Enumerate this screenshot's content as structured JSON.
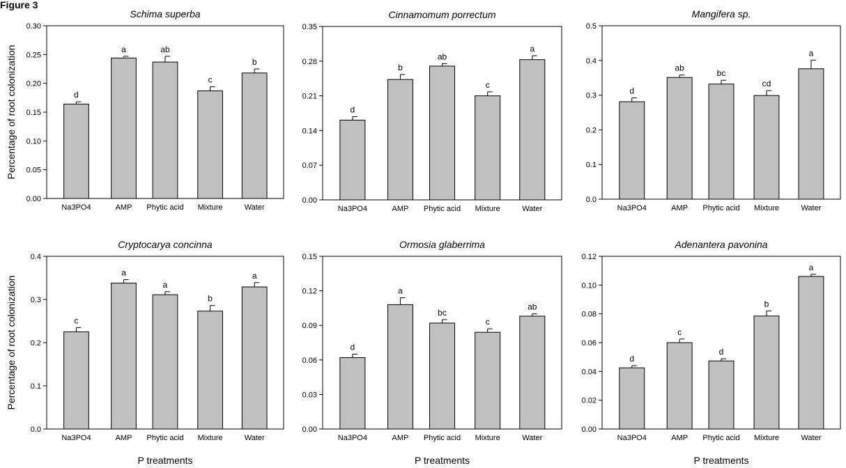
{
  "figure": {
    "label": "Figure 3"
  },
  "chart_data": [
    {
      "type": "bar",
      "title": "Schima superba",
      "ylabel": "Percentage of root colonization",
      "xlabel": "",
      "categories": [
        "Na3PO4",
        "AMP",
        "Phytic acid",
        "Mixture",
        "Water"
      ],
      "values": [
        0.164,
        0.244,
        0.237,
        0.187,
        0.218
      ],
      "errors": [
        0.004,
        0.003,
        0.01,
        0.007,
        0.007
      ],
      "significance": [
        "d",
        "a",
        "ab",
        "c",
        "b"
      ],
      "ylim": [
        0,
        0.3
      ],
      "yticks": [
        0.0,
        0.05,
        0.1,
        0.15,
        0.2,
        0.25,
        0.3
      ],
      "ytick_labels": [
        "0.00",
        "0.05",
        "0.10",
        "0.15",
        "0.20",
        "0.25",
        "0.30"
      ],
      "color": "#c0c0c0"
    },
    {
      "type": "bar",
      "title": "Cinnamomum porrectum",
      "ylabel": "",
      "xlabel": "",
      "categories": [
        "Na3PO4",
        "AMP",
        "Phytic acid",
        "Mixture",
        "Water"
      ],
      "values": [
        0.161,
        0.243,
        0.27,
        0.21,
        0.283
      ],
      "errors": [
        0.007,
        0.01,
        0.005,
        0.008,
        0.008
      ],
      "significance": [
        "d",
        "b",
        "ab",
        "c",
        "a"
      ],
      "ylim": [
        0,
        0.35
      ],
      "yticks": [
        0.0,
        0.07,
        0.14,
        0.21,
        0.28,
        0.35
      ],
      "ytick_labels": [
        "0.00",
        "0.07",
        "0.14",
        "0.21",
        "0.28",
        "0.35"
      ],
      "color": "#c0c0c0"
    },
    {
      "type": "bar",
      "title": "Mangifera sp.",
      "ylabel": "",
      "xlabel": "",
      "categories": [
        "Na3PO4",
        "AMP",
        "Phytic acid",
        "Mixture",
        "Water"
      ],
      "values": [
        0.281,
        0.351,
        0.332,
        0.299,
        0.376
      ],
      "errors": [
        0.011,
        0.007,
        0.011,
        0.014,
        0.025
      ],
      "significance": [
        "d",
        "ab",
        "bc",
        "cd",
        "a"
      ],
      "ylim": [
        0,
        0.5
      ],
      "yticks": [
        0.0,
        0.1,
        0.2,
        0.3,
        0.4,
        0.5
      ],
      "ytick_labels": [
        "0.0",
        "0.1",
        "0.2",
        "0.3",
        "0.4",
        "0.5"
      ],
      "color": "#c0c0c0"
    },
    {
      "type": "bar",
      "title": "Cryptocarya concinna",
      "ylabel": "Percentage of root colonization",
      "xlabel": "P treatments",
      "categories": [
        "Na3PO4",
        "AMP",
        "Phytic acid",
        "Mixture",
        "Water"
      ],
      "values": [
        0.225,
        0.338,
        0.311,
        0.273,
        0.329
      ],
      "errors": [
        0.01,
        0.008,
        0.007,
        0.013,
        0.01
      ],
      "significance": [
        "c",
        "a",
        "a",
        "b",
        "a"
      ],
      "ylim": [
        0,
        0.4
      ],
      "yticks": [
        0.0,
        0.1,
        0.2,
        0.3,
        0.4
      ],
      "ytick_labels": [
        "0.0",
        "0.1",
        "0.2",
        "0.3",
        "0.4"
      ],
      "color": "#c0c0c0"
    },
    {
      "type": "bar",
      "title": "Ormosia glaberrima",
      "ylabel": "",
      "xlabel": "P treatments",
      "categories": [
        "Na3PO4",
        "AMP",
        "Phytic acid",
        "Mixture",
        "Water"
      ],
      "values": [
        0.062,
        0.108,
        0.092,
        0.084,
        0.098
      ],
      "errors": [
        0.003,
        0.006,
        0.003,
        0.003,
        0.002
      ],
      "significance": [
        "d",
        "a",
        "bc",
        "c",
        "ab"
      ],
      "ylim": [
        0,
        0.15
      ],
      "yticks": [
        0.0,
        0.03,
        0.06,
        0.09,
        0.12,
        0.15
      ],
      "ytick_labels": [
        "0.00",
        "0.03",
        "0.06",
        "0.09",
        "0.12",
        "0.15"
      ],
      "color": "#c0c0c0"
    },
    {
      "type": "bar",
      "title": "Adenantera pavonina",
      "ylabel": "",
      "xlabel": "P treatments",
      "categories": [
        "Na3PO4",
        "AMP",
        "Phytic acid",
        "Mixture",
        "Water"
      ],
      "values": [
        0.0425,
        0.06,
        0.0473,
        0.0785,
        0.106
      ],
      "errors": [
        0.0015,
        0.0025,
        0.0015,
        0.0035,
        0.0015
      ],
      "significance": [
        "d",
        "c",
        "d",
        "b",
        "a"
      ],
      "ylim": [
        0,
        0.12
      ],
      "yticks": [
        0.0,
        0.02,
        0.04,
        0.06,
        0.08,
        0.1,
        0.12
      ],
      "ytick_labels": [
        "0.00",
        "0.02",
        "0.04",
        "0.06",
        "0.08",
        "0.10",
        "0.12"
      ],
      "color": "#c0c0c0"
    }
  ]
}
